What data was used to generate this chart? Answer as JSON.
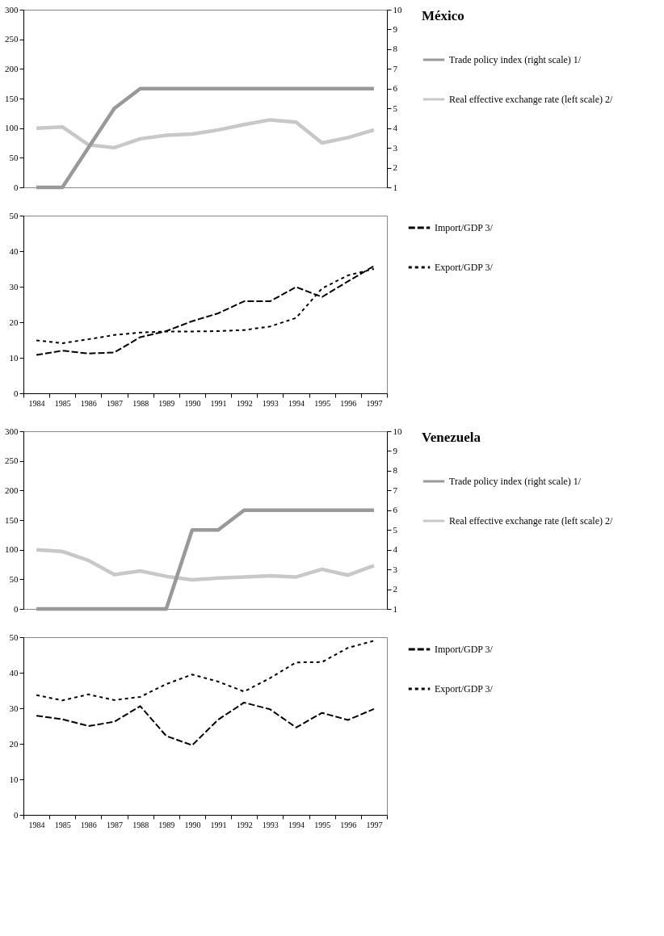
{
  "chart_data": [
    {
      "type": "line",
      "legend_title": "México",
      "legend": "right",
      "tick_labels": "y",
      "categories": [
        "1984",
        "1985",
        "1986",
        "1987",
        "1988",
        "1989",
        "1990",
        "1991",
        "1992",
        "1993",
        "1994",
        "1995",
        "1996",
        "1997"
      ],
      "ylim": [
        0,
        300
      ],
      "yticks": [
        0,
        50,
        100,
        150,
        200,
        250,
        300
      ],
      "y2lim": [
        1,
        10
      ],
      "y2ticks": [
        1,
        2,
        3,
        4,
        5,
        6,
        7,
        8,
        9,
        10
      ],
      "series": [
        {
          "name": "Trade policy index (right scale) 1/",
          "color": "#999999",
          "axis": "y2",
          "line_style": "solid",
          "values": [
            1,
            1,
            3,
            5,
            6,
            6,
            6,
            6,
            6,
            6,
            6,
            6,
            6,
            6
          ]
        },
        {
          "name": "Real effective exchange rate (left scale) 2/",
          "color": "#c8c8c8",
          "line_style": "solid",
          "values": [
            100,
            102,
            72,
            67,
            82,
            88,
            90,
            97,
            106,
            114,
            110,
            75,
            84,
            97
          ]
        }
      ]
    },
    {
      "type": "line",
      "legend": "right",
      "categories": [
        "1984",
        "1985",
        "1986",
        "1987",
        "1988",
        "1989",
        "1990",
        "1991",
        "1992",
        "1993",
        "1994",
        "1995",
        "1996",
        "1997"
      ],
      "ylim": [
        0,
        50
      ],
      "yticks": [
        0,
        10,
        20,
        30,
        40,
        50
      ],
      "series": [
        {
          "name": "Import/GDP 3/",
          "color": "#000000",
          "line_style": "dashed",
          "values": [
            10.8,
            12,
            11.2,
            11.5,
            15.8,
            17.5,
            20.3,
            22.5,
            25.9,
            25.9,
            29.9,
            27.1,
            31.5,
            35.8
          ]
        },
        {
          "name": "Export/GDP 3/",
          "color": "#000000",
          "line_style": "dotted",
          "values": [
            14.9,
            14.1,
            15.2,
            16.4,
            17.1,
            17.4,
            17.4,
            17.5,
            17.8,
            18.8,
            21.2,
            29.5,
            33.2,
            35
          ]
        }
      ]
    },
    {
      "type": "line",
      "legend_title": "Venezuela",
      "legend": "right",
      "tick_labels": "y",
      "categories": [
        "1984",
        "1985",
        "1986",
        "1987",
        "1988",
        "1989",
        "1990",
        "1991",
        "1992",
        "1993",
        "1994",
        "1995",
        "1996",
        "1997"
      ],
      "ylim": [
        0,
        300
      ],
      "yticks": [
        0,
        50,
        100,
        150,
        200,
        250,
        300
      ],
      "y2lim": [
        1,
        10
      ],
      "y2ticks": [
        1,
        2,
        3,
        4,
        5,
        6,
        7,
        8,
        9,
        10
      ],
      "series": [
        {
          "name": "Trade policy index (right scale) 1/",
          "color": "#999999",
          "axis": "y2",
          "line_style": "solid",
          "values": [
            1,
            1,
            1,
            1,
            1,
            1,
            5,
            5,
            6,
            6,
            6,
            6,
            6,
            6
          ]
        },
        {
          "name": "Real effective exchange rate (left scale) 2/",
          "color": "#c8c8c8",
          "line_style": "solid",
          "values": [
            100,
            97,
            82,
            58,
            64,
            55,
            49,
            52,
            54,
            56,
            54,
            67,
            57,
            73
          ]
        }
      ]
    },
    {
      "type": "line",
      "legend": "right",
      "categories": [
        "1984",
        "1985",
        "1986",
        "1987",
        "1988",
        "1989",
        "1990",
        "1991",
        "1992",
        "1993",
        "1994",
        "1995",
        "1996",
        "1997"
      ],
      "ylim": [
        0,
        50
      ],
      "yticks": [
        0,
        10,
        20,
        30,
        40,
        50
      ],
      "series": [
        {
          "name": "Import/GDP 3/",
          "color": "#000000",
          "line_style": "dashed",
          "values": [
            27.9,
            26.9,
            25,
            26.2,
            30.6,
            22.2,
            19.6,
            26.8,
            31.6,
            29.7,
            24.6,
            28.7,
            26.7,
            29.8
          ]
        },
        {
          "name": "Export/GDP 3/",
          "color": "#000000",
          "line_style": "dotted",
          "values": [
            33.7,
            32.2,
            33.9,
            32.3,
            33.2,
            36.8,
            39.5,
            37.5,
            34.7,
            38.5,
            42.9,
            43,
            47,
            49
          ]
        }
      ]
    }
  ]
}
